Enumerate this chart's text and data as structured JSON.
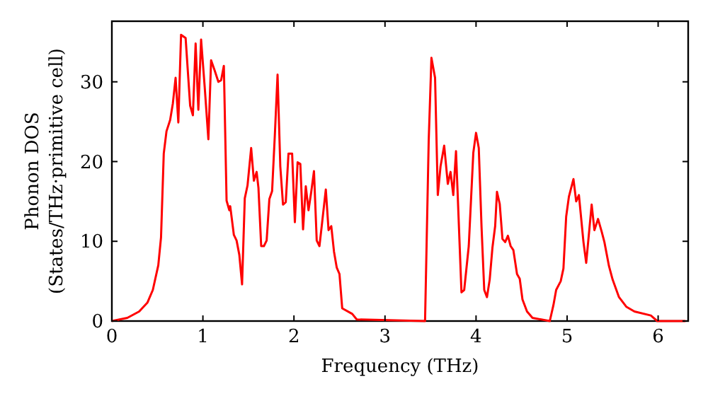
{
  "chart_data": {
    "type": "line",
    "xlabel": "Frequency (THz)",
    "ylabel": "Phonon DOS\n(States/THz·primitive cell)",
    "xlim": [
      0,
      6.33
    ],
    "ylim": [
      0,
      37.6
    ],
    "xticks": [
      0,
      1,
      2,
      3,
      4,
      5,
      6
    ],
    "yticks": [
      0,
      10,
      20,
      30
    ],
    "grid": false,
    "series": [
      {
        "color": "#ff0000",
        "x": [
          0,
          0.17,
          0.3,
          0.39,
          0.45,
          0.51,
          0.54,
          0.57,
          0.6,
          0.64,
          0.67,
          0.7,
          0.73,
          0.76,
          0.81,
          0.86,
          0.89,
          0.92,
          0.95,
          0.98,
          1.02,
          1.06,
          1.09,
          1.13,
          1.17,
          1.2,
          1.23,
          1.26,
          1.29,
          1.3,
          1.34,
          1.37,
          1.4,
          1.43,
          1.46,
          1.49,
          1.53,
          1.56,
          1.59,
          1.61,
          1.64,
          1.67,
          1.7,
          1.73,
          1.76,
          1.79,
          1.82,
          1.85,
          1.88,
          1.91,
          1.94,
          1.98,
          2.01,
          2.04,
          2.07,
          2.1,
          2.13,
          2.16,
          2.19,
          2.22,
          2.25,
          2.28,
          2.31,
          2.35,
          2.38,
          2.41,
          2.44,
          2.47,
          2.5,
          2.53,
          2.64,
          2.69,
          3.44,
          3.48,
          3.51,
          3.55,
          3.58,
          3.61,
          3.65,
          3.69,
          3.72,
          3.75,
          3.78,
          3.84,
          3.87,
          3.92,
          3.97,
          4.0,
          4.03,
          4.06,
          4.09,
          4.12,
          4.15,
          4.18,
          4.21,
          4.23,
          4.26,
          4.29,
          4.32,
          4.35,
          4.38,
          4.41,
          4.45,
          4.48,
          4.51,
          4.56,
          4.62,
          4.81,
          4.85,
          4.88,
          4.93,
          4.96,
          4.99,
          5.02,
          5.07,
          5.1,
          5.13,
          5.18,
          5.21,
          5.27,
          5.3,
          5.34,
          5.38,
          5.41,
          5.46,
          5.5,
          5.57,
          5.65,
          5.74,
          5.92,
          5.99,
          6.3
        ],
        "values": [
          0,
          0.4,
          1.2,
          2.3,
          3.9,
          7,
          10.5,
          21,
          23.8,
          25.2,
          27.3,
          30.5,
          24.9,
          35.9,
          35.5,
          27,
          25.8,
          34.8,
          26.5,
          35.3,
          29.3,
          22.8,
          32.7,
          31.4,
          30,
          30.2,
          32,
          15.1,
          13.9,
          14.4,
          10.8,
          10.1,
          8.3,
          4.6,
          15.4,
          17,
          21.7,
          17.6,
          18.7,
          16.7,
          9.4,
          9.4,
          10.1,
          15.3,
          16.3,
          23.3,
          30.9,
          19.4,
          14.6,
          14.9,
          21,
          21,
          12.4,
          19.9,
          19.7,
          11.5,
          16.9,
          13.9,
          16.2,
          18.8,
          10.1,
          9.4,
          12.4,
          16.5,
          11.4,
          11.9,
          8.7,
          6.7,
          5.9,
          1.6,
          0.9,
          0.2,
          0,
          22.6,
          33,
          30.5,
          15.8,
          19.4,
          22,
          17.2,
          18.7,
          15.8,
          21.3,
          3.6,
          3.9,
          9.4,
          21.1,
          23.6,
          21.7,
          11.9,
          3.9,
          3,
          5.2,
          9.2,
          11.9,
          16.2,
          14.7,
          10.3,
          9.9,
          10.7,
          9.4,
          8.9,
          5.9,
          5.3,
          2.7,
          1.2,
          0.4,
          0,
          2,
          3.9,
          5,
          6.6,
          13.1,
          15.6,
          17.8,
          15,
          15.8,
          9.9,
          7.3,
          14.6,
          11.4,
          12.8,
          11.2,
          9.9,
          6.9,
          5.2,
          3,
          1.8,
          1.2,
          0.7,
          0,
          0
        ]
      }
    ]
  }
}
